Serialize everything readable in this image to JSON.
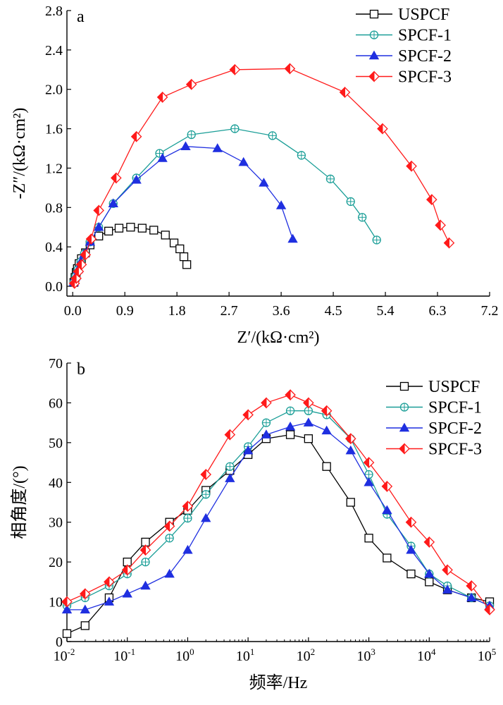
{
  "figure": {
    "colors": {
      "USPCF": "#000000",
      "SPCF-1": "#1a9e97",
      "SPCF-2": "#1f2fe0",
      "SPCF-3": "#ff1a1a"
    },
    "markers": {
      "USPCF": "square-open",
      "SPCF-1": "circle-crossed",
      "SPCF-2": "triangle-filled",
      "SPCF-3": "diamond-half"
    }
  },
  "chart_data": [
    {
      "type": "scatter",
      "panel": "a",
      "title": "",
      "xlabel": "Z′/(kΩ·cm²)",
      "ylabel": "-Z″/(kΩ·cm²)",
      "xlim": [
        -0.1,
        7.2
      ],
      "ylim": [
        -0.1,
        2.8
      ],
      "xticks": [
        "0.0",
        "0.9",
        "1.8",
        "2.7",
        "3.6",
        "4.5",
        "5.4",
        "6.3",
        "7.2"
      ],
      "yticks": [
        "0.0",
        "0.4",
        "0.8",
        "1.2",
        "1.6",
        "2.0",
        "2.4",
        "2.8"
      ],
      "legend": "top-right",
      "series": [
        {
          "name": "USPCF",
          "x": [
            0.02,
            0.04,
            0.06,
            0.08,
            0.11,
            0.15,
            0.22,
            0.3,
            0.45,
            0.62,
            0.8,
            1.0,
            1.2,
            1.4,
            1.6,
            1.75,
            1.85,
            1.92,
            1.97
          ],
          "y": [
            0.04,
            0.09,
            0.14,
            0.18,
            0.23,
            0.28,
            0.34,
            0.42,
            0.51,
            0.56,
            0.59,
            0.6,
            0.59,
            0.57,
            0.52,
            0.44,
            0.38,
            0.3,
            0.22
          ]
        },
        {
          "name": "SPCF-1",
          "x": [
            0.02,
            0.05,
            0.09,
            0.14,
            0.2,
            0.3,
            0.45,
            0.7,
            1.1,
            1.5,
            2.05,
            2.8,
            3.45,
            3.95,
            4.45,
            4.8,
            5.0,
            5.25
          ],
          "y": [
            0.04,
            0.1,
            0.17,
            0.25,
            0.33,
            0.45,
            0.6,
            0.84,
            1.1,
            1.35,
            1.54,
            1.6,
            1.53,
            1.33,
            1.09,
            0.86,
            0.7,
            0.47
          ]
        },
        {
          "name": "SPCF-2",
          "x": [
            0.02,
            0.05,
            0.09,
            0.14,
            0.2,
            0.3,
            0.45,
            0.7,
            1.1,
            1.55,
            1.95,
            2.5,
            2.95,
            3.3,
            3.6,
            3.8
          ],
          "y": [
            0.04,
            0.1,
            0.17,
            0.25,
            0.33,
            0.45,
            0.6,
            0.84,
            1.08,
            1.3,
            1.42,
            1.4,
            1.26,
            1.05,
            0.82,
            0.48
          ]
        },
        {
          "name": "SPCF-3",
          "x": [
            0.03,
            0.06,
            0.1,
            0.15,
            0.22,
            0.32,
            0.45,
            0.75,
            1.1,
            1.55,
            2.05,
            2.8,
            3.75,
            4.7,
            5.35,
            5.85,
            6.2,
            6.35,
            6.5
          ],
          "y": [
            0.03,
            0.08,
            0.15,
            0.22,
            0.32,
            0.48,
            0.77,
            1.1,
            1.52,
            1.92,
            2.05,
            2.2,
            2.21,
            1.97,
            1.6,
            1.22,
            0.88,
            0.62,
            0.44
          ]
        }
      ]
    },
    {
      "type": "line",
      "panel": "b",
      "title": "",
      "xlabel": "频率/Hz",
      "ylabel": "相角度/(°)",
      "xscale": "log",
      "xlim": [
        0.01,
        100000
      ],
      "ylim": [
        0,
        70
      ],
      "xticks": [
        {
          "base": "10",
          "exp": "-2"
        },
        {
          "base": "10",
          "exp": "-1"
        },
        {
          "base": "10",
          "exp": "0"
        },
        {
          "base": "10",
          "exp": "1"
        },
        {
          "base": "10",
          "exp": "2"
        },
        {
          "base": "10",
          "exp": "3"
        },
        {
          "base": "10",
          "exp": "4"
        },
        {
          "base": "10",
          "exp": "5"
        }
      ],
      "yticks": [
        "0",
        "10",
        "20",
        "30",
        "40",
        "50",
        "60",
        "70"
      ],
      "legend": "right",
      "series": [
        {
          "name": "USPCF",
          "x": [
            0.01,
            0.02,
            0.05,
            0.1,
            0.2,
            0.5,
            1,
            2,
            5,
            10,
            20,
            50,
            100,
            200,
            500,
            1000,
            2000,
            5000,
            10000,
            20000,
            50000,
            100000
          ],
          "y": [
            2,
            4,
            11,
            20,
            25,
            30,
            33,
            38,
            43,
            47,
            51,
            52,
            51,
            44,
            35,
            26,
            21,
            17,
            15,
            13,
            11,
            10
          ]
        },
        {
          "name": "SPCF-1",
          "x": [
            0.01,
            0.02,
            0.05,
            0.1,
            0.2,
            0.5,
            1,
            2,
            5,
            10,
            20,
            50,
            100,
            200,
            500,
            1000,
            2000,
            5000,
            10000,
            20000,
            50000,
            100000
          ],
          "y": [
            9,
            11,
            14,
            17,
            20,
            26,
            31,
            37,
            44,
            49,
            55,
            58,
            58,
            57,
            51,
            42,
            32,
            24,
            17,
            14,
            11,
            9
          ]
        },
        {
          "name": "SPCF-2",
          "x": [
            0.01,
            0.02,
            0.05,
            0.1,
            0.2,
            0.5,
            1,
            2,
            5,
            10,
            20,
            50,
            100,
            200,
            500,
            1000,
            2000,
            5000,
            10000,
            20000,
            50000,
            100000
          ],
          "y": [
            8,
            8,
            10,
            12,
            14,
            17,
            23,
            31,
            41,
            48,
            52,
            54,
            55,
            53,
            48,
            40,
            33,
            23,
            17,
            13,
            11,
            9
          ]
        },
        {
          "name": "SPCF-3",
          "x": [
            0.01,
            0.02,
            0.05,
            0.1,
            0.2,
            0.5,
            1,
            2,
            5,
            10,
            20,
            50,
            100,
            200,
            500,
            1000,
            2000,
            5000,
            10000,
            20000,
            50000,
            100000
          ],
          "y": [
            10,
            12,
            15,
            18,
            23,
            29,
            34,
            42,
            52,
            57,
            60,
            62,
            60,
            58,
            51,
            45,
            39,
            30,
            25,
            18,
            14,
            8
          ]
        }
      ]
    }
  ]
}
